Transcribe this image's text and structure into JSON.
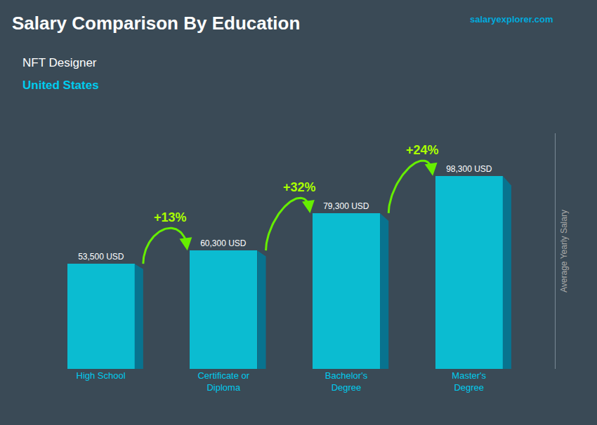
{
  "chart_data": {
    "type": "bar",
    "title": "Salary Comparison By Education",
    "subtitle": [
      "NFT Designer",
      "United States"
    ],
    "ylabel": "Average Yearly Salary",
    "categories": [
      "High School",
      "Certificate or\nDiploma",
      "Bachelor's\nDegree",
      "Master's\nDegree"
    ],
    "values": [
      53500,
      60300,
      79300,
      98300
    ],
    "value_labels": [
      "53,500 USD",
      "60,300 USD",
      "79,300 USD",
      "98,300 USD"
    ],
    "data_labels": true,
    "color": "#00d8f0",
    "ylim": [
      0,
      120000
    ],
    "grid": false,
    "tick_labels": "x",
    "annotations": [
      {
        "text": "+13%",
        "from": "High School",
        "to": "Certificate or\nDiploma"
      },
      {
        "text": "+32%",
        "from": "Certificate or\nDiploma",
        "to": "Bachelor's\nDegree"
      },
      {
        "text": "+24%",
        "from": "Bachelor's\nDegree",
        "to": "Master's\nDegree"
      },
      {
        "text": "salaryexplorer.com"
      }
    ]
  }
}
